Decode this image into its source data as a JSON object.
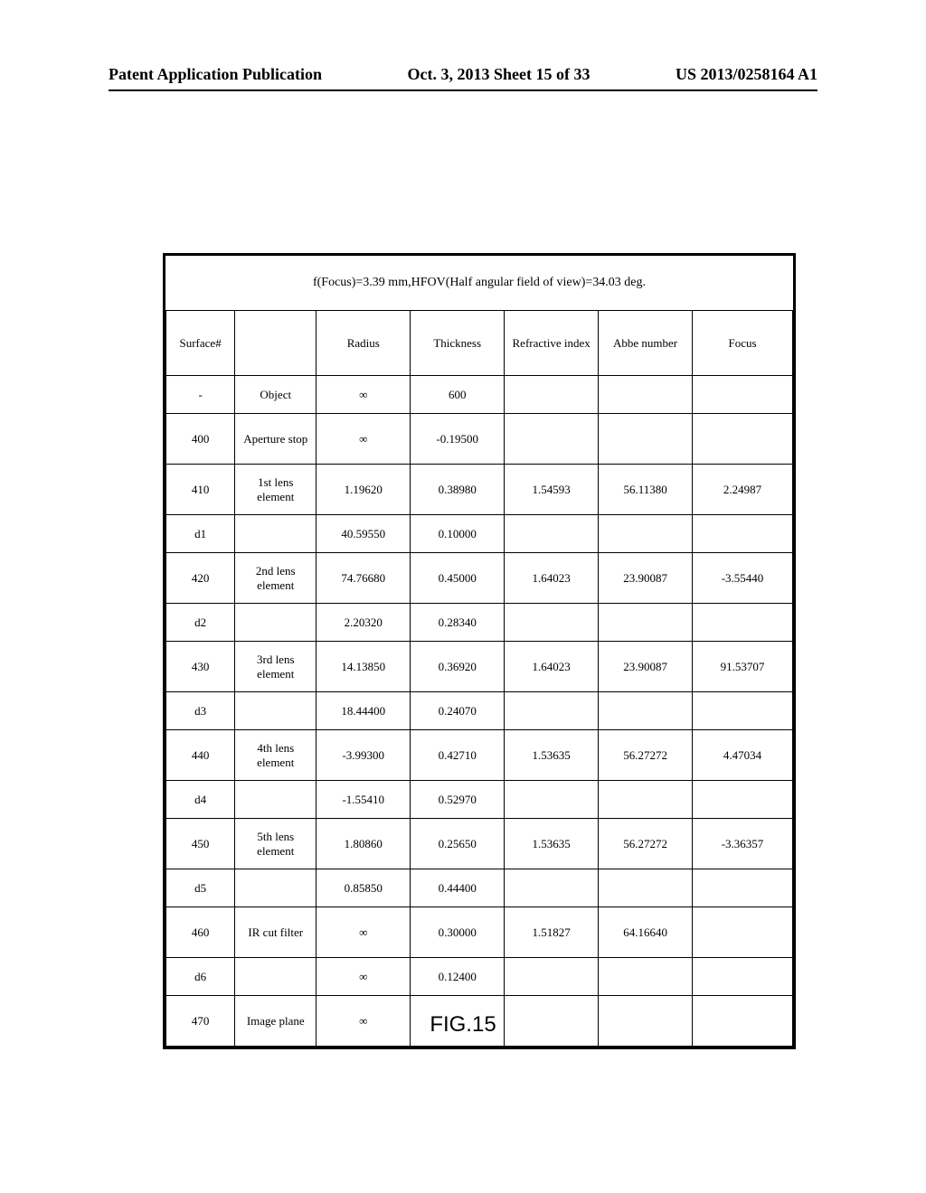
{
  "header": {
    "left": "Patent Application Publication",
    "center": "Oct. 3, 2013  Sheet 15 of 33",
    "right": "US 2013/0258164 A1"
  },
  "table": {
    "caption": "f(Focus)=3.39 mm,HFOV(Half angular field of view)=34.03 deg.",
    "columns": [
      "Surface#",
      "",
      "Radius",
      "Thickness",
      "Refractive index",
      "Abbe number",
      "Focus"
    ],
    "rows": [
      {
        "tall": false,
        "cells": [
          "-",
          "Object",
          "∞",
          "600",
          "",
          "",
          ""
        ]
      },
      {
        "tall": true,
        "cells": [
          "400",
          "Aperture stop",
          "∞",
          "-0.19500",
          "",
          "",
          ""
        ]
      },
      {
        "tall": true,
        "cells": [
          "410",
          "1st lens element",
          "1.19620",
          "0.38980",
          "1.54593",
          "56.11380",
          "2.24987"
        ]
      },
      {
        "tall": false,
        "cells": [
          "d1",
          "",
          "40.59550",
          "0.10000",
          "",
          "",
          ""
        ]
      },
      {
        "tall": true,
        "cells": [
          "420",
          "2nd lens element",
          "74.76680",
          "0.45000",
          "1.64023",
          "23.90087",
          "-3.55440"
        ]
      },
      {
        "tall": false,
        "cells": [
          "d2",
          "",
          "2.20320",
          "0.28340",
          "",
          "",
          ""
        ]
      },
      {
        "tall": true,
        "cells": [
          "430",
          "3rd lens element",
          "14.13850",
          "0.36920",
          "1.64023",
          "23.90087",
          "91.53707"
        ]
      },
      {
        "tall": false,
        "cells": [
          "d3",
          "",
          "18.44400",
          "0.24070",
          "",
          "",
          ""
        ]
      },
      {
        "tall": true,
        "cells": [
          "440",
          "4th lens element",
          "-3.99300",
          "0.42710",
          "1.53635",
          "56.27272",
          "4.47034"
        ]
      },
      {
        "tall": false,
        "cells": [
          "d4",
          "",
          "-1.55410",
          "0.52970",
          "",
          "",
          ""
        ]
      },
      {
        "tall": true,
        "cells": [
          "450",
          "5th lens element",
          "1.80860",
          "0.25650",
          "1.53635",
          "56.27272",
          "-3.36357"
        ]
      },
      {
        "tall": false,
        "cells": [
          "d5",
          "",
          "0.85850",
          "0.44400",
          "",
          "",
          ""
        ]
      },
      {
        "tall": true,
        "cells": [
          "460",
          "IR cut filter",
          "∞",
          "0.30000",
          "1.51827",
          "64.16640",
          ""
        ]
      },
      {
        "tall": false,
        "cells": [
          "d6",
          "",
          "∞",
          "0.12400",
          "",
          "",
          ""
        ]
      },
      {
        "tall": true,
        "cells": [
          "470",
          "Image plane",
          "∞",
          "",
          "",
          "",
          ""
        ]
      }
    ]
  },
  "figureLabel": "FIG.15"
}
